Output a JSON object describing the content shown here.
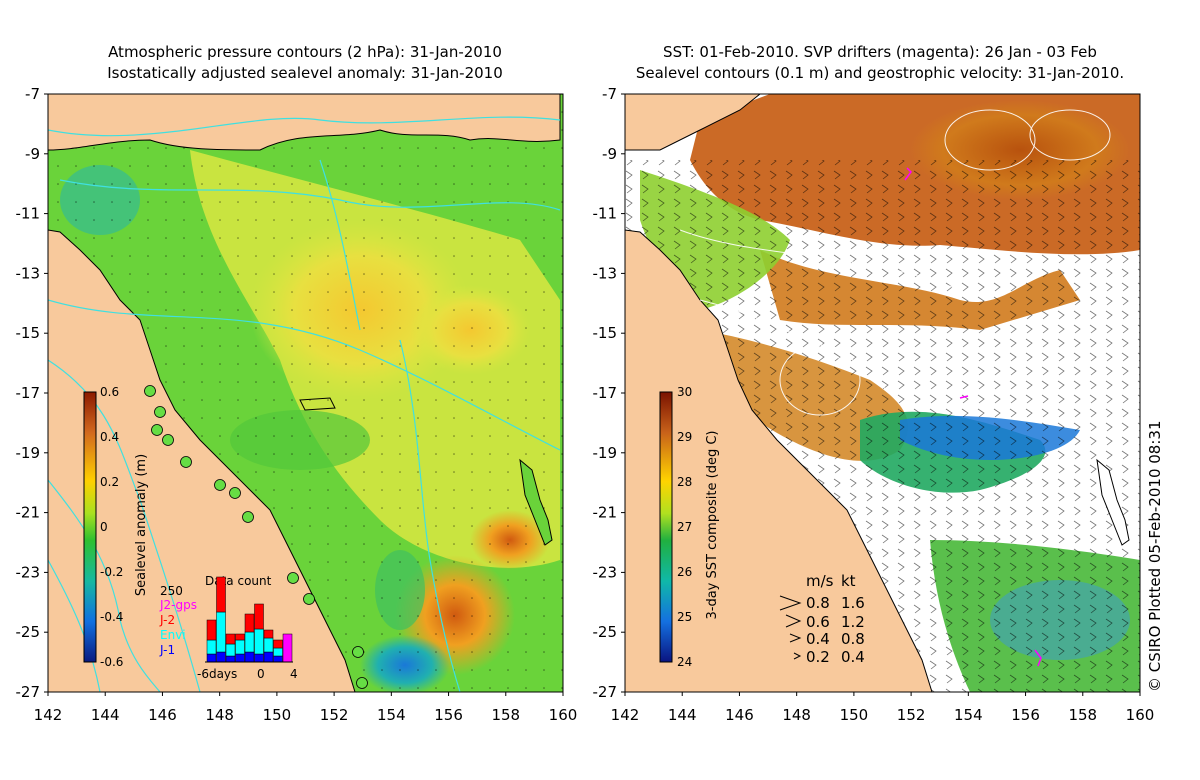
{
  "left_panel": {
    "title_line1": "Atmospheric pressure contours (2 hPa): 31-Jan-2010",
    "title_line2": "Isostatically adjusted sealevel anomaly: 31-Jan-2010",
    "colorbar_label": "Sealevel anomaly (m)",
    "colorbar_ticks": [
      "0.6",
      "0.4",
      "0.2",
      "0",
      "-0.2",
      "-0.4",
      "-0.6"
    ],
    "inset": {
      "title": "Data count",
      "ymax_label": "250",
      "legend": [
        {
          "label": "J2-gps",
          "color": "#ff00ff"
        },
        {
          "label": "J-2",
          "color": "#ff0000"
        },
        {
          "label": "Envi",
          "color": "#00ffff"
        },
        {
          "label": "J-1",
          "color": "#0000ff"
        }
      ],
      "x_labels": [
        "-6days",
        "0",
        "4"
      ]
    }
  },
  "right_panel": {
    "title_line1": "SST: 01-Feb-2010. SVP drifters (magenta): 26 Jan - 03 Feb",
    "title_line2": "Sealevel contours (0.1 m) and geostrophic velocity: 31-Jan-2010.",
    "colorbar_label": "3-day SST composite (deg C)",
    "colorbar_ticks": [
      "30",
      "29",
      "28",
      "27",
      "26",
      "25",
      "24"
    ],
    "velocity_key": {
      "header_ms": "m/s",
      "header_kt": "kt",
      "rows": [
        {
          "ms": "0.8",
          "kt": "1.6"
        },
        {
          "ms": "0.6",
          "kt": "1.2"
        },
        {
          "ms": "0.4",
          "kt": "0.8"
        },
        {
          "ms": "0.2",
          "kt": "0.4"
        }
      ]
    }
  },
  "axes": {
    "lat_ticks": [
      "-7",
      "-9",
      "-11",
      "-13",
      "-15",
      "-17",
      "-19",
      "-21",
      "-23",
      "-25",
      "-27"
    ],
    "lon_ticks": [
      "142",
      "144",
      "146",
      "148",
      "150",
      "152",
      "154",
      "156",
      "158",
      "160"
    ]
  },
  "credit": "© CSIRO Plotted 05-Feb-2010 08:31",
  "colors": {
    "land": "#f8c99c",
    "ocean_green": "#6ad33a",
    "sst_orange": "#d07a1c",
    "sst_blue": "#1a78d8"
  }
}
